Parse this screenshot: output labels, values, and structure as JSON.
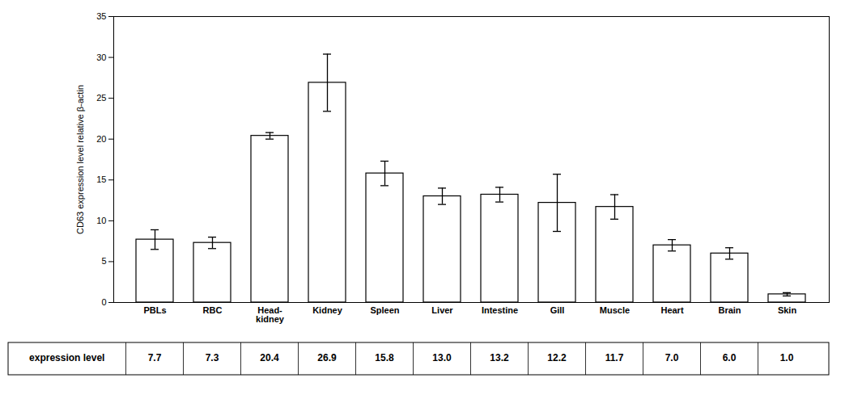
{
  "chart_data": {
    "type": "bar",
    "categories": [
      "PBLs",
      "RBC",
      "Head-\nkidney",
      "Kidney",
      "Spleen",
      "Liver",
      "Intestine",
      "Gill",
      "Muscle",
      "Heart",
      "Brain",
      "Skin"
    ],
    "values": [
      7.7,
      7.3,
      20.4,
      26.9,
      15.8,
      13.0,
      13.2,
      12.2,
      11.7,
      7.0,
      6.0,
      1.0
    ],
    "errors": [
      1.2,
      0.7,
      0.4,
      3.5,
      1.5,
      1.0,
      0.9,
      3.5,
      1.5,
      0.7,
      0.7,
      0.2
    ],
    "ylabel": "CD63 expression level relative β-actin",
    "ylim": [
      0,
      35
    ],
    "yticks": [
      0,
      5,
      10,
      15,
      20,
      25,
      30,
      35
    ],
    "color": "white",
    "grid": false,
    "table_row_label": "expression level",
    "table_values": [
      "7.7",
      "7.3",
      "20.4",
      "26.9",
      "15.8",
      "13.0",
      "13.2",
      "12.2",
      "11.7",
      "7.0",
      "6.0",
      "1.0"
    ]
  }
}
